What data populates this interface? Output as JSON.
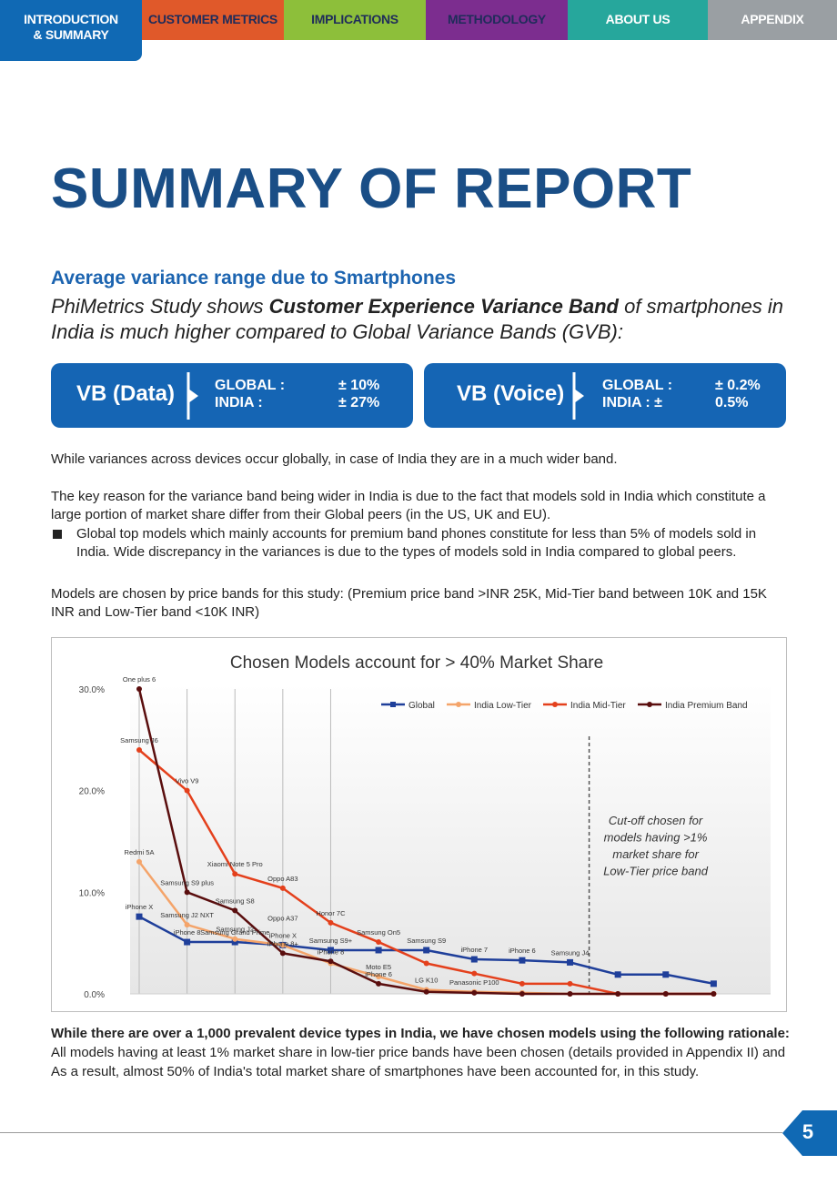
{
  "nav": {
    "tabs": [
      {
        "label_line1": "INTRODUCTION",
        "label_line2": "& SUMMARY",
        "color": "#1069b4",
        "active": true
      },
      {
        "label": "CUSTOMER METRICS",
        "color": "#e0592a"
      },
      {
        "label": "IMPLICATIONS",
        "color": "#8dbf3a"
      },
      {
        "label": "METHODOLOGY",
        "color": "#7c2d8f"
      },
      {
        "label": "ABOUT US",
        "color": "#26a79c"
      },
      {
        "label": "APPENDIX",
        "color": "#9a9fa3"
      }
    ]
  },
  "page_title": "SUMMARY OF REPORT",
  "subhead": "Average variance range due to Smartphones",
  "intro": {
    "part1": "PhiMetrics Study shows ",
    "bold": "Customer Experience Variance Band",
    "part2": " of smartphones in India is much higher compared to Global Variance Bands (GVB):"
  },
  "variance_bands": [
    {
      "label": "VB (Data)",
      "key1": "GLOBAL :",
      "key2": "INDIA :",
      "val1": "± 10%",
      "val2": "± 27%"
    },
    {
      "label": "VB (Voice)",
      "key1": "GLOBAL :",
      "key2": "INDIA : ±",
      "val1": "± 0.2%",
      "val2": "0.5%"
    }
  ],
  "para1": "While variances across devices occur globally, in case of India they are in a much wider band.",
  "para2": "The key reason for the variance band being wider in India is due to the fact that models sold in India which constitute a large portion of market share differ from their Global peers (in the US, UK and EU).",
  "bullet1": "Global top models which mainly accounts for premium band phones constitute for less than 5% of models sold in India. Wide discrepancy in the variances is due to the types of models sold in India compared to global peers.",
  "para3": "Models are chosen by price bands for this study: (Premium price band >INR 25K, Mid-Tier band between 10K and 15K INR and Low-Tier band <10K INR)",
  "chart_data": {
    "type": "line",
    "title": "Chosen Models account for > 40% Market Share",
    "xlabel": "",
    "ylabel": "",
    "x": [
      1,
      2,
      3,
      4,
      5,
      6,
      7,
      8,
      9,
      10,
      11,
      12,
      13,
      14
    ],
    "ylim": [
      0,
      30
    ],
    "yticks": [
      "0.0%",
      "10.0%",
      "20.0%",
      "30.0%"
    ],
    "legend_position": "top-right",
    "series": [
      {
        "name": "Global",
        "color": "#1f3f9a",
        "marker": "square",
        "values": [
          7.6,
          5.1,
          5.1,
          4.8,
          4.3,
          4.3,
          4.3,
          3.4,
          3.3,
          3.1,
          1.9,
          1.9,
          1.0,
          null
        ]
      },
      {
        "name": "India Low-Tier",
        "color": "#f4a46a",
        "marker": "circle",
        "values": [
          13.0,
          6.8,
          5.4,
          4.8,
          3.0,
          1.7,
          0.4,
          0.2,
          0.1,
          0.0,
          0.0,
          0.0,
          0.0,
          null
        ]
      },
      {
        "name": "India Mid-Tier",
        "color": "#e4401c",
        "marker": "circle",
        "values": [
          24.0,
          20.0,
          11.8,
          10.4,
          7.0,
          5.1,
          3.0,
          2.0,
          1.0,
          1.0,
          0.0,
          0.0,
          0.0,
          null
        ]
      },
      {
        "name": "India Premium Band",
        "color": "#5a0e0e",
        "marker": "circle",
        "values": [
          30.0,
          10.0,
          8.2,
          4.0,
          3.2,
          1.0,
          0.2,
          0.1,
          0.0,
          0.0,
          0.0,
          0.0,
          0.0,
          null
        ]
      }
    ],
    "labels": [
      {
        "text": "One plus 6",
        "x": 1,
        "y": 30.0
      },
      {
        "text": "Samsung J6",
        "x": 1,
        "y": 24.0
      },
      {
        "text": "Vivo V9",
        "x": 2,
        "y": 20.0
      },
      {
        "text": "Redmi 5A",
        "x": 1,
        "y": 13.0
      },
      {
        "text": "Xiaomi Note 5 Pro",
        "x": 3,
        "y": 11.8
      },
      {
        "text": "Oppo A83",
        "x": 4,
        "y": 10.4
      },
      {
        "text": "Samsung S9 plus",
        "x": 2,
        "y": 10.0
      },
      {
        "text": "Samsung S8",
        "x": 3,
        "y": 8.2
      },
      {
        "text": "Samsung J2 NXT",
        "x": 2,
        "y": 6.8
      },
      {
        "text": "Oppo A37",
        "x": 4,
        "y": 6.5
      },
      {
        "text": "Honor 7C",
        "x": 5,
        "y": 7.0
      },
      {
        "text": "Samsung J2",
        "x": 3,
        "y": 5.4
      },
      {
        "text": "iPhone X",
        "x": 1,
        "y": 7.6
      },
      {
        "text": "iPhone X",
        "x": 4,
        "y": 4.8
      },
      {
        "text": "Samsung S9+",
        "x": 5,
        "y": 4.3
      },
      {
        "text": "Samsung On5",
        "x": 6,
        "y": 5.1
      },
      {
        "text": "Samsung S9",
        "x": 7,
        "y": 4.3
      },
      {
        "text": "iPhone 7",
        "x": 8,
        "y": 3.4
      },
      {
        "text": "iPhone 6",
        "x": 9,
        "y": 3.3
      },
      {
        "text": "Samsung J4",
        "x": 10,
        "y": 3.1
      },
      {
        "text": "iPhone 8",
        "x": 2,
        "y": 5.1
      },
      {
        "text": "Samsung Grand Prime",
        "x": 3,
        "y": 5.1
      },
      {
        "text": "iPhone 8+",
        "x": 4,
        "y": 4.0
      },
      {
        "text": "iPhone 8",
        "x": 5,
        "y": 3.2
      },
      {
        "text": "iPhone 6",
        "x": 6,
        "y": 1.0
      },
      {
        "text": "Moto E5",
        "x": 6,
        "y": 1.7
      },
      {
        "text": "LG K10",
        "x": 7,
        "y": 0.4
      },
      {
        "text": "Panasonic P100",
        "x": 8,
        "y": 0.2
      }
    ],
    "annotation": {
      "lines": [
        "Cut-off chosen for",
        "models having >1%",
        "market share for",
        "Low-Tier price band"
      ],
      "x": 10.4
    }
  },
  "rationale": {
    "bold": "While there are over a 1,000 prevalent device types in India, we have chosen models using the following rationale:",
    "text": " All models having at least 1% market share in low-tier price bands have been chosen (details provided in Appendix II) and As a result, almost 50% of India's total market share of smartphones have been accounted for, in this study."
  },
  "page_number": "5"
}
